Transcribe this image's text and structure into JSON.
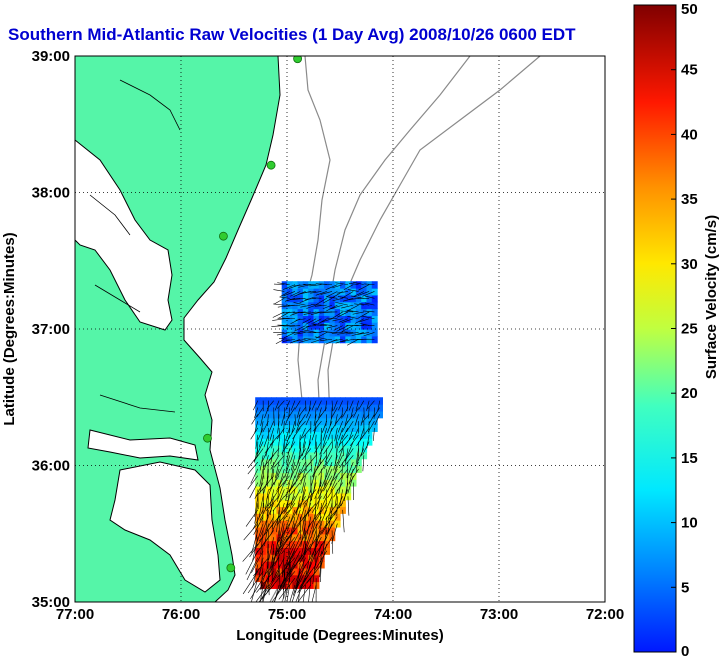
{
  "chart_data": {
    "type": "heatmap",
    "title": "Southern Mid-Atlantic Raw Velocities (1 Day Avg) 2008/10/26 0600 EDT",
    "xlabel": "Longitude (Degrees:Minutes)",
    "ylabel": "Latitude (Degrees:Minutes)",
    "x_ticks": [
      "77:00",
      "76:00",
      "75:00",
      "74:00",
      "73:00",
      "72:00"
    ],
    "y_ticks": [
      "39:00",
      "38:00",
      "37:00",
      "36:00",
      "35:00"
    ],
    "xlim": [
      -77,
      -72
    ],
    "ylim": [
      35,
      39
    ],
    "grid": true,
    "colorbar": {
      "label": "Surface Velocity (cm/s)",
      "range": [
        0,
        50
      ],
      "ticks": [
        "0",
        "5",
        "10",
        "15",
        "20",
        "25",
        "30",
        "35",
        "40",
        "45",
        "50"
      ],
      "colormap": "jet"
    },
    "regions": [
      {
        "name": "north",
        "lon": [
          -75.05,
          -74.2
        ],
        "lat": [
          36.9,
          37.3
        ],
        "speed_cm_s": [
          8,
          16
        ]
      },
      {
        "name": "south",
        "lon": [
          -75.4,
          -74.15
        ],
        "lat": [
          35.1,
          36.45
        ],
        "speed_cm_s": [
          10,
          48
        ]
      }
    ],
    "stations": [
      {
        "lon": -74.9,
        "lat": 38.98
      },
      {
        "lon": -75.15,
        "lat": 38.2
      },
      {
        "lon": -75.6,
        "lat": 37.68
      },
      {
        "lon": -75.75,
        "lat": 36.2
      },
      {
        "lon": -75.53,
        "lat": 35.25
      }
    ]
  },
  "colors": {
    "land": "#55f5a8",
    "coast": "#000000",
    "isobath": "#8a8a8a",
    "title": "#0000d0",
    "station": "#30cc30"
  }
}
